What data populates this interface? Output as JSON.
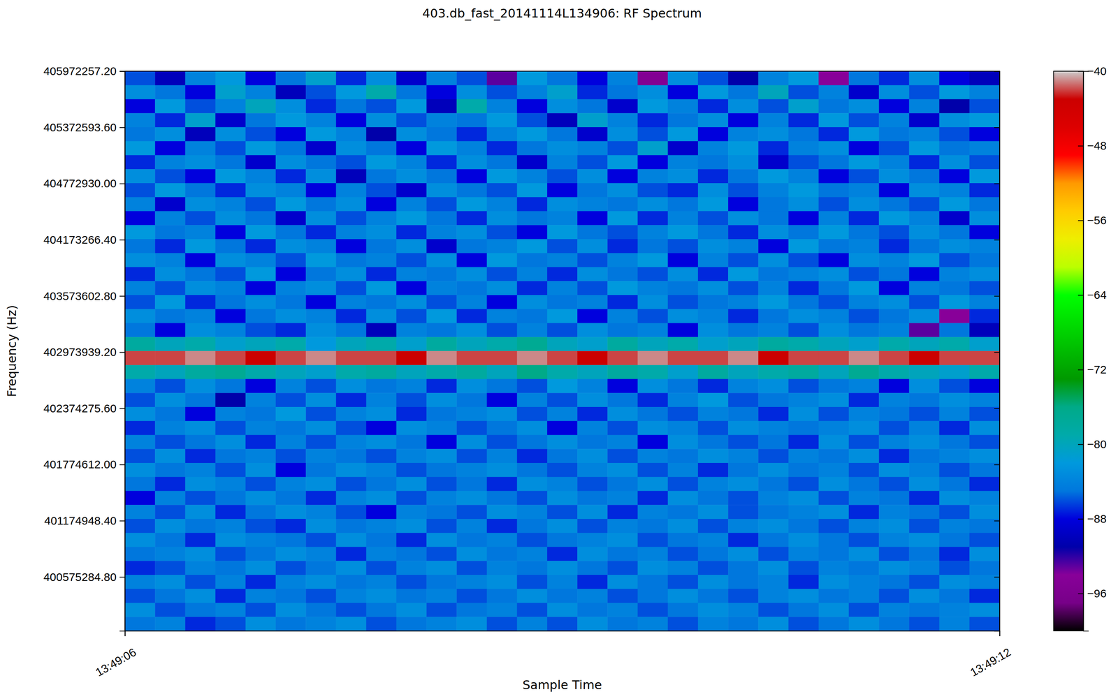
{
  "chart_data": {
    "type": "heatmap",
    "title": "403.db_fast_20141114L134906: RF Spectrum",
    "x_label": "Sample Time",
    "y_label": "Frequency (Hz)",
    "xlim": [
      "13:49:06",
      "13:49:12"
    ],
    "xticks": [
      "13:49:06",
      "13:49:12"
    ],
    "ylim": [
      400000000,
      405972257.2
    ],
    "yticks": [
      {
        "value": 400575284.8,
        "label": "400575284.80"
      },
      {
        "value": 401174948.4,
        "label": "401174948.40"
      },
      {
        "value": 401774612,
        "label": "401774612.00"
      },
      {
        "value": 402374275.6,
        "label": "402374275.60"
      },
      {
        "value": 402973939.2,
        "label": "402973939.20"
      },
      {
        "value": 403573602.8,
        "label": "403573602.80"
      },
      {
        "value": 404173266.4,
        "label": "404173266.40"
      },
      {
        "value": 404772930,
        "label": "404772930.00"
      },
      {
        "value": 405372593.6,
        "label": "405372593.60"
      },
      {
        "value": 405972257.2,
        "label": "405972257.20"
      }
    ],
    "colorbar": {
      "range": [
        -100,
        -40
      ],
      "ticks": [
        -96,
        -88,
        -80,
        -72,
        -64,
        -56,
        -48,
        -40
      ]
    },
    "cells": [
      [
        -86,
        -90,
        -84,
        -82,
        -88,
        -85,
        -81,
        -87,
        -83,
        -89,
        -84,
        -86,
        -93,
        -82,
        -85,
        -88,
        -84,
        -95,
        -83,
        -86,
        -91,
        -84,
        -82,
        -94,
        -85,
        -87,
        -83,
        -88,
        -90
      ],
      [
        -83,
        -85,
        -88,
        -81,
        -84,
        -90,
        -86,
        -82,
        -79,
        -85,
        -88,
        -83,
        -86,
        -84,
        -81,
        -87,
        -85,
        -83,
        -88,
        -82,
        -85,
        -80,
        -86,
        -84,
        -89,
        -83,
        -86,
        -82,
        -84
      ],
      [
        -88,
        -82,
        -86,
        -84,
        -80,
        -83,
        -87,
        -85,
        -86,
        -82,
        -90,
        -79,
        -84,
        -88,
        -83,
        -85,
        -89,
        -82,
        -84,
        -87,
        -83,
        -86,
        -81,
        -85,
        -83,
        -88,
        -84,
        -91,
        -86
      ],
      [
        -84,
        -87,
        -81,
        -89,
        -85,
        -82,
        -84,
        -88,
        -83,
        -86,
        -84,
        -85,
        -82,
        -86,
        -90,
        -81,
        -84,
        -87,
        -85,
        -83,
        -88,
        -84,
        -87,
        -82,
        -86,
        -84,
        -89,
        -83,
        -82
      ],
      [
        -85,
        -83,
        -90,
        -83,
        -86,
        -88,
        -82,
        -84,
        -91,
        -83,
        -85,
        -87,
        -84,
        -82,
        -85,
        -89,
        -83,
        -86,
        -82,
        -88,
        -84,
        -83,
        -85,
        -87,
        -82,
        -85,
        -84,
        -86,
        -88
      ],
      [
        -82,
        -88,
        -84,
        -86,
        -82,
        -85,
        -89,
        -83,
        -85,
        -88,
        -82,
        -84,
        -87,
        -85,
        -83,
        -84,
        -86,
        -81,
        -89,
        -84,
        -82,
        -87,
        -84,
        -83,
        -88,
        -86,
        -82,
        -85,
        -84
      ],
      [
        -87,
        -84,
        -83,
        -85,
        -89,
        -83,
        -85,
        -86,
        -82,
        -84,
        -87,
        -83,
        -85,
        -89,
        -84,
        -86,
        -82,
        -88,
        -84,
        -85,
        -83,
        -89,
        -86,
        -85,
        -82,
        -84,
        -87,
        -83,
        -86
      ],
      [
        -83,
        -86,
        -88,
        -82,
        -84,
        -87,
        -83,
        -90,
        -85,
        -83,
        -85,
        -88,
        -82,
        -84,
        -86,
        -83,
        -88,
        -84,
        -83,
        -87,
        -85,
        -82,
        -84,
        -88,
        -86,
        -83,
        -85,
        -88,
        -82
      ],
      [
        -86,
        -82,
        -85,
        -87,
        -83,
        -84,
        -88,
        -84,
        -86,
        -89,
        -83,
        -85,
        -86,
        -82,
        -88,
        -85,
        -83,
        -86,
        -87,
        -83,
        -86,
        -84,
        -82,
        -85,
        -84,
        -88,
        -83,
        -84,
        -87
      ],
      [
        -84,
        -89,
        -83,
        -84,
        -86,
        -82,
        -85,
        -83,
        -88,
        -84,
        -86,
        -82,
        -84,
        -87,
        -83,
        -84,
        -85,
        -83,
        -85,
        -82,
        -88,
        -85,
        -83,
        -86,
        -83,
        -85,
        -86,
        -82,
        -85
      ],
      [
        -88,
        -84,
        -86,
        -83,
        -85,
        -89,
        -83,
        -86,
        -84,
        -82,
        -85,
        -87,
        -83,
        -85,
        -84,
        -88,
        -82,
        -87,
        -84,
        -86,
        -83,
        -85,
        -88,
        -84,
        -87,
        -82,
        -84,
        -89,
        -83
      ],
      [
        -82,
        -85,
        -84,
        -88,
        -82,
        -85,
        -87,
        -84,
        -83,
        -87,
        -84,
        -83,
        -86,
        -88,
        -82,
        -85,
        -86,
        -84,
        -82,
        -85,
        -87,
        -83,
        -85,
        -82,
        -85,
        -86,
        -83,
        -85,
        -88
      ],
      [
        -85,
        -87,
        -82,
        -85,
        -87,
        -83,
        -84,
        -88,
        -85,
        -83,
        -89,
        -85,
        -84,
        -82,
        -86,
        -83,
        -87,
        -85,
        -86,
        -83,
        -84,
        -88,
        -82,
        -85,
        -84,
        -87,
        -85,
        -83,
        -84
      ],
      [
        -83,
        -84,
        -88,
        -83,
        -84,
        -86,
        -82,
        -85,
        -84,
        -86,
        -83,
        -88,
        -82,
        -85,
        -84,
        -86,
        -84,
        -82,
        -88,
        -84,
        -86,
        -83,
        -86,
        -88,
        -83,
        -84,
        -82,
        -86,
        -85
      ],
      [
        -87,
        -83,
        -85,
        -86,
        -82,
        -88,
        -85,
        -83,
        -87,
        -84,
        -85,
        -83,
        -86,
        -84,
        -87,
        -83,
        -85,
        -86,
        -83,
        -87,
        -82,
        -85,
        -84,
        -83,
        -86,
        -85,
        -88,
        -84,
        -83
      ],
      [
        -84,
        -86,
        -83,
        -84,
        -88,
        -84,
        -83,
        -86,
        -82,
        -88,
        -84,
        -85,
        -83,
        -87,
        -84,
        -86,
        -82,
        -84,
        -85,
        -83,
        -86,
        -84,
        -87,
        -85,
        -82,
        -88,
        -84,
        -85,
        -86
      ],
      [
        -86,
        -82,
        -87,
        -85,
        -83,
        -85,
        -88,
        -84,
        -85,
        -83,
        -86,
        -84,
        -88,
        -83,
        -85,
        -84,
        -87,
        -83,
        -86,
        -85,
        -84,
        -82,
        -85,
        -86,
        -84,
        -83,
        -86,
        -82,
        -84
      ],
      [
        -83,
        -85,
        -84,
        -88,
        -85,
        -83,
        -84,
        -87,
        -83,
        -86,
        -82,
        -87,
        -84,
        -85,
        -82,
        -88,
        -84,
        -86,
        -83,
        -84,
        -87,
        -85,
        -83,
        -84,
        -86,
        -85,
        -83,
        -94,
        -87
      ],
      [
        -85,
        -88,
        -83,
        -84,
        -86,
        -87,
        -83,
        -85,
        -90,
        -84,
        -85,
        -83,
        -86,
        -84,
        -86,
        -83,
        -85,
        -84,
        -88,
        -83,
        -85,
        -84,
        -86,
        -83,
        -85,
        -84,
        -93,
        -85,
        -90
      ],
      [
        -78,
        -80,
        -79,
        -81,
        -80,
        -79,
        -82,
        -80,
        -79,
        -81,
        -78,
        -80,
        -79,
        -77,
        -80,
        -81,
        -78,
        -80,
        -79,
        -81,
        -80,
        -78,
        -79,
        -80,
        -81,
        -79,
        -80,
        -79,
        -81
      ],
      [
        -42,
        -42,
        -41,
        -42,
        -43,
        -42,
        -41,
        -42,
        -42,
        -43,
        -41,
        -42,
        -42,
        -41,
        -42,
        -43,
        -42,
        -41,
        -42,
        -42,
        -41,
        -43,
        -42,
        -42,
        -41,
        -42,
        -43,
        -42,
        -42
      ],
      [
        -79,
        -80,
        -78,
        -77,
        -79,
        -80,
        -81,
        -79,
        -78,
        -80,
        -79,
        -78,
        -80,
        -76,
        -79,
        -80,
        -78,
        -79,
        -81,
        -78,
        -80,
        -79,
        -78,
        -80,
        -77,
        -79,
        -80,
        -81,
        -79
      ],
      [
        -84,
        -86,
        -83,
        -85,
        -88,
        -84,
        -86,
        -83,
        -85,
        -84,
        -87,
        -83,
        -85,
        -86,
        -82,
        -84,
        -88,
        -83,
        -85,
        -87,
        -84,
        -83,
        -86,
        -85,
        -84,
        -88,
        -83,
        -86,
        -88
      ],
      [
        -86,
        -83,
        -85,
        -91,
        -84,
        -86,
        -83,
        -87,
        -84,
        -86,
        -83,
        -85,
        -88,
        -84,
        -86,
        -83,
        -85,
        -87,
        -84,
        -82,
        -86,
        -85,
        -84,
        -83,
        -87,
        -84,
        -85,
        -83,
        -84
      ],
      [
        -83,
        -85,
        -88,
        -84,
        -85,
        -82,
        -86,
        -84,
        -83,
        -87,
        -85,
        -84,
        -83,
        -86,
        -84,
        -87,
        -83,
        -85,
        -86,
        -84,
        -85,
        -87,
        -83,
        -86,
        -84,
        -85,
        -86,
        -84,
        -86
      ],
      [
        -87,
        -84,
        -83,
        -86,
        -84,
        -85,
        -83,
        -86,
        -88,
        -83,
        -84,
        -86,
        -85,
        -83,
        -88,
        -84,
        -86,
        -83,
        -84,
        -86,
        -83,
        -84,
        -85,
        -84,
        -83,
        -86,
        -84,
        -87,
        -83
      ],
      [
        -84,
        -86,
        -85,
        -83,
        -87,
        -84,
        -86,
        -84,
        -83,
        -85,
        -88,
        -83,
        -86,
        -85,
        -83,
        -85,
        -84,
        -88,
        -83,
        -85,
        -86,
        -85,
        -87,
        -83,
        -86,
        -84,
        -83,
        -85,
        -86
      ],
      [
        -86,
        -83,
        -87,
        -85,
        -84,
        -86,
        -84,
        -85,
        -86,
        -84,
        -83,
        -86,
        -84,
        -87,
        -85,
        -83,
        -86,
        -84,
        -85,
        -83,
        -84,
        -86,
        -84,
        -85,
        -83,
        -87,
        -85,
        -84,
        -83
      ],
      [
        -83,
        -85,
        -84,
        -86,
        -83,
        -88,
        -85,
        -83,
        -84,
        -86,
        -85,
        -84,
        -83,
        -85,
        -86,
        -84,
        -83,
        -86,
        -84,
        -87,
        -85,
        -83,
        -85,
        -84,
        -86,
        -83,
        -84,
        -86,
        -85
      ],
      [
        -85,
        -87,
        -83,
        -84,
        -86,
        -84,
        -83,
        -86,
        -85,
        -83,
        -86,
        -85,
        -87,
        -83,
        -84,
        -86,
        -85,
        -83,
        -86,
        -84,
        -83,
        -85,
        -86,
        -83,
        -85,
        -86,
        -83,
        -85,
        -87
      ],
      [
        -88,
        -84,
        -86,
        -85,
        -83,
        -85,
        -87,
        -84,
        -83,
        -86,
        -84,
        -83,
        -85,
        -86,
        -83,
        -85,
        -84,
        -87,
        -83,
        -85,
        -86,
        -84,
        -83,
        -86,
        -84,
        -85,
        -87,
        -83,
        -84
      ],
      [
        -84,
        -86,
        -83,
        -87,
        -85,
        -83,
        -84,
        -86,
        -88,
        -84,
        -85,
        -86,
        -83,
        -84,
        -86,
        -83,
        -87,
        -84,
        -85,
        -83,
        -86,
        -85,
        -84,
        -83,
        -87,
        -84,
        -85,
        -86,
        -83
      ],
      [
        -86,
        -83,
        -85,
        -84,
        -86,
        -87,
        -83,
        -85,
        -84,
        -83,
        -86,
        -84,
        -87,
        -85,
        -83,
        -86,
        -84,
        -85,
        -83,
        -86,
        -84,
        -83,
        -85,
        -86,
        -84,
        -83,
        -86,
        -84,
        -85
      ],
      [
        -83,
        -85,
        -87,
        -83,
        -84,
        -85,
        -86,
        -83,
        -85,
        -87,
        -83,
        -85,
        -84,
        -86,
        -85,
        -84,
        -83,
        -86,
        -85,
        -84,
        -87,
        -85,
        -83,
        -85,
        -86,
        -84,
        -83,
        -85,
        -86
      ],
      [
        -85,
        -84,
        -83,
        -86,
        -85,
        -83,
        -84,
        -87,
        -84,
        -85,
        -86,
        -83,
        -85,
        -84,
        -87,
        -83,
        -85,
        -84,
        -86,
        -85,
        -83,
        -86,
        -84,
        -85,
        -83,
        -86,
        -85,
        -87,
        -83
      ],
      [
        -87,
        -86,
        -84,
        -85,
        -83,
        -86,
        -85,
        -83,
        -86,
        -84,
        -83,
        -86,
        -84,
        -85,
        -83,
        -85,
        -86,
        -83,
        -84,
        -86,
        -85,
        -83,
        -86,
        -84,
        -85,
        -83,
        -84,
        -86,
        -85
      ],
      [
        -84,
        -83,
        -86,
        -84,
        -87,
        -84,
        -83,
        -85,
        -84,
        -86,
        -85,
        -84,
        -83,
        -86,
        -84,
        -87,
        -83,
        -85,
        -86,
        -83,
        -85,
        -84,
        -87,
        -83,
        -84,
        -85,
        -86,
        -83,
        -84
      ],
      [
        -86,
        -85,
        -83,
        -87,
        -84,
        -85,
        -86,
        -84,
        -83,
        -85,
        -84,
        -86,
        -85,
        -83,
        -85,
        -84,
        -86,
        -85,
        -83,
        -85,
        -86,
        -84,
        -83,
        -85,
        -84,
        -86,
        -83,
        -85,
        -87
      ],
      [
        -83,
        -86,
        -85,
        -84,
        -86,
        -83,
        -85,
        -86,
        -85,
        -83,
        -86,
        -85,
        -84,
        -86,
        -83,
        -85,
        -84,
        -86,
        -85,
        -83,
        -84,
        -86,
        -85,
        -83,
        -86,
        -84,
        -85,
        -84,
        -83
      ],
      [
        -85,
        -84,
        -87,
        -86,
        -83,
        -85,
        -84,
        -83,
        -86,
        -85,
        -84,
        -83,
        -86,
        -84,
        -86,
        -83,
        -85,
        -84,
        -86,
        -84,
        -85,
        -83,
        -86,
        -85,
        -83,
        -85,
        -86,
        -84,
        -86
      ]
    ]
  }
}
